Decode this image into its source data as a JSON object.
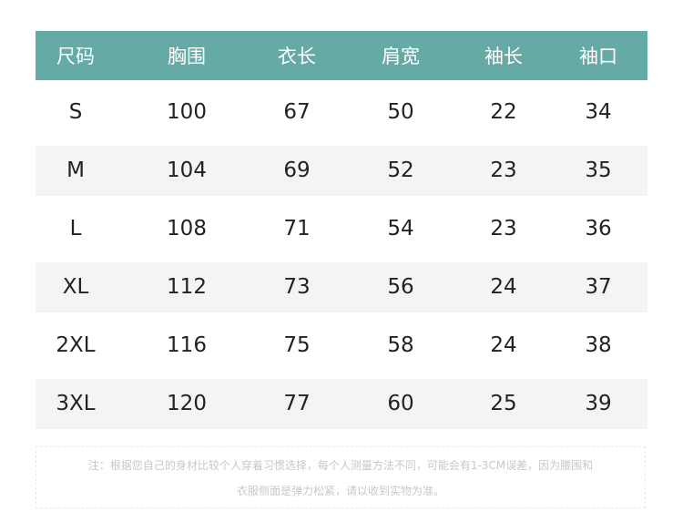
{
  "header": [
    "尺码",
    "胸围",
    "衣长",
    "肩宽",
    "袖长",
    "袖口"
  ],
  "rows": [
    [
      "S",
      "100",
      "67",
      "50",
      "22",
      "34"
    ],
    [
      "M",
      "104",
      "69",
      "52",
      "23",
      "35"
    ],
    [
      "L",
      "108",
      "71",
      "54",
      "23",
      "36"
    ],
    [
      "XL",
      "112",
      "73",
      "56",
      "24",
      "37"
    ],
    [
      "2XL",
      "116",
      "75",
      "58",
      "24",
      "38"
    ],
    [
      "3XL",
      "120",
      "77",
      "60",
      "25",
      "39"
    ]
  ],
  "note": {
    "line1": "注：根据您自己的身材比较个人穿着习惯选择，每个人测量方法不同，可能会有1-3CM误差，因为腰围和",
    "line2": "衣服侧面是弹力松紧，请以收到实物为准。"
  },
  "colors": {
    "header_bg": "#66aaa6",
    "shaded_row": "#f4f4f4"
  }
}
